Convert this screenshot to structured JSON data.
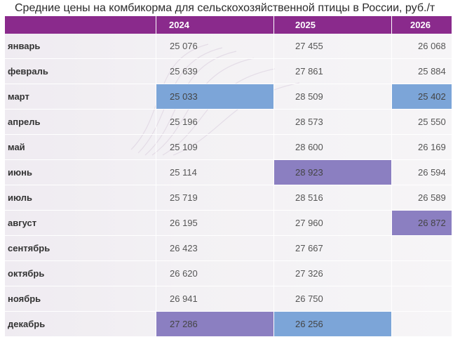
{
  "title": "Средние цены на комбикорма для сельскохозяйственной птицы в России, руб./т",
  "header": {
    "month": "",
    "y1": "2024",
    "y2": "2025",
    "y3": "2026"
  },
  "rows": [
    {
      "month": "январь",
      "y1": "25 076",
      "y2": "27 455",
      "y3": "26 068"
    },
    {
      "month": "февраль",
      "y1": "25 639",
      "y2": "27 861",
      "y3": "25 884"
    },
    {
      "month": "март",
      "y1": "25 033",
      "y2": "28 509",
      "y3": "25 402"
    },
    {
      "month": "апрель",
      "y1": "25 196",
      "y2": "28 573",
      "y3": "25 550"
    },
    {
      "month": "май",
      "y1": "25 109",
      "y2": "28 600",
      "y3": "26 169"
    },
    {
      "month": "июнь",
      "y1": "25 114",
      "y2": "28 923",
      "y3": "26 594"
    },
    {
      "month": "июль",
      "y1": "25 719",
      "y2": "28 516",
      "y3": "26 589"
    },
    {
      "month": "август",
      "y1": "26 195",
      "y2": "27 960",
      "y3": "26 872"
    },
    {
      "month": "сентябрь",
      "y1": "26 423",
      "y2": "27 667",
      "y3": ""
    },
    {
      "month": "октябрь",
      "y1": "26 620",
      "y2": "27 326",
      "y3": ""
    },
    {
      "month": "ноябрь",
      "y1": "26 941",
      "y2": "26 750",
      "y3": ""
    },
    {
      "month": "декабрь",
      "y1": "27 286",
      "y2": "26 256",
      "y3": ""
    }
  ],
  "colors": {
    "header": "#8a2a8c",
    "highlight_min": "#7ca5d8",
    "highlight_max": "#8b7fc1"
  }
}
